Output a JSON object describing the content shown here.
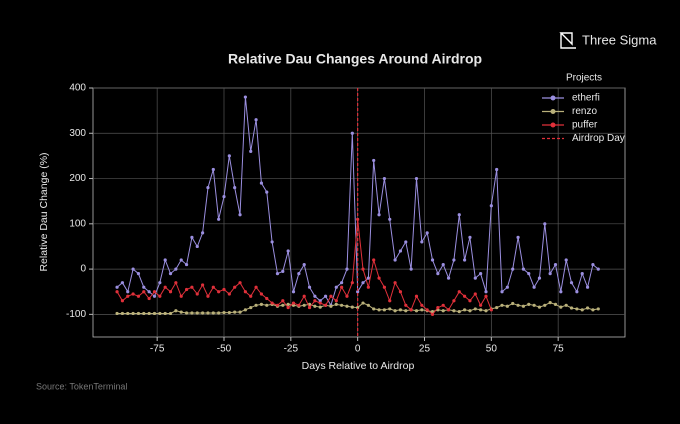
{
  "brand": "Three Sigma",
  "source": "Source: TokenTerminal",
  "chart_data": {
    "type": "line",
    "title": "Relative Dau Changes Around Airdrop",
    "x_label": "Days Relative to Airdrop",
    "y_label": "Relative Dau Change (%)",
    "legend_title": "Projects",
    "legend_position": "upper right",
    "grid": true,
    "xlim": [
      -99,
      100
    ],
    "ylim": [
      -150,
      400
    ],
    "xticks": [
      -75,
      -50,
      -25,
      0,
      25,
      50,
      75
    ],
    "yticks": [
      -100,
      0,
      100,
      200,
      300,
      400
    ],
    "airdrop_day": {
      "name": "Airdrop Day",
      "x": 0,
      "color": "#e0303a"
    },
    "x": [
      -90,
      -88,
      -86,
      -84,
      -82,
      -80,
      -78,
      -76,
      -74,
      -72,
      -70,
      -68,
      -66,
      -64,
      -62,
      -60,
      -58,
      -56,
      -54,
      -52,
      -50,
      -48,
      -46,
      -44,
      -42,
      -40,
      -38,
      -36,
      -34,
      -32,
      -30,
      -28,
      -26,
      -24,
      -22,
      -20,
      -18,
      -16,
      -14,
      -12,
      -10,
      -8,
      -6,
      -4,
      -2,
      0,
      2,
      4,
      6,
      8,
      10,
      12,
      14,
      16,
      18,
      20,
      22,
      24,
      26,
      28,
      30,
      32,
      34,
      36,
      38,
      40,
      42,
      44,
      46,
      48,
      50,
      52,
      54,
      56,
      58,
      60,
      62,
      64,
      66,
      68,
      70,
      72,
      74,
      76,
      78,
      80,
      82,
      84,
      86,
      88,
      90
    ],
    "series": [
      {
        "name": "etherfi",
        "color": "#9b8fe0",
        "values": [
          -40,
          -30,
          -50,
          0,
          -10,
          -40,
          -50,
          -60,
          -30,
          20,
          -10,
          0,
          20,
          10,
          70,
          50,
          80,
          180,
          220,
          110,
          160,
          250,
          180,
          120,
          380,
          260,
          330,
          190,
          170,
          60,
          -10,
          -5,
          40,
          -50,
          -10,
          10,
          -40,
          -60,
          -70,
          -60,
          -80,
          -40,
          -30,
          0,
          300,
          -50,
          -30,
          -20,
          240,
          120,
          200,
          110,
          20,
          40,
          60,
          0,
          200,
          60,
          80,
          20,
          -10,
          10,
          -20,
          20,
          120,
          20,
          70,
          -20,
          -10,
          -50,
          140,
          220,
          -50,
          -40,
          0,
          70,
          0,
          -10,
          -40,
          -20,
          100,
          -10,
          10,
          -50,
          20,
          -30,
          -50,
          -10,
          -40,
          10,
          0
        ]
      },
      {
        "name": "renzo",
        "color": "#b9b07a",
        "values": [
          -98,
          -98,
          -98,
          -98,
          -98,
          -98,
          -98,
          -98,
          -98,
          -98,
          -98,
          -92,
          -95,
          -97,
          -97,
          -97,
          -97,
          -97,
          -97,
          -97,
          -96,
          -96,
          -95,
          -95,
          -90,
          -85,
          -80,
          -78,
          -80,
          -78,
          -82,
          -80,
          -78,
          -80,
          -82,
          -80,
          -78,
          -82,
          -84,
          -80,
          -82,
          -78,
          -80,
          -82,
          -84,
          -85,
          -75,
          -80,
          -88,
          -90,
          -90,
          -88,
          -92,
          -90,
          -92,
          -90,
          -92,
          -90,
          -92,
          -94,
          -90,
          -92,
          -90,
          -92,
          -94,
          -90,
          -92,
          -88,
          -90,
          -92,
          -88,
          -85,
          -80,
          -82,
          -76,
          -80,
          -82,
          -78,
          -80,
          -84,
          -80,
          -74,
          -78,
          -84,
          -80,
          -86,
          -88,
          -90,
          -86,
          -90,
          -88
        ]
      },
      {
        "name": "puffer",
        "color": "#e0303a",
        "values": [
          -50,
          -70,
          -60,
          -55,
          -60,
          -50,
          -65,
          -50,
          -60,
          -40,
          -50,
          -30,
          -60,
          -45,
          -40,
          -55,
          -35,
          -60,
          -40,
          -50,
          -45,
          -55,
          -40,
          -30,
          -50,
          -60,
          -40,
          -55,
          -65,
          -75,
          -80,
          -70,
          -85,
          -75,
          -80,
          -60,
          -85,
          -70,
          -75,
          -80,
          -60,
          -70,
          -40,
          -60,
          -30,
          110,
          0,
          -40,
          20,
          -20,
          -40,
          -70,
          -30,
          -50,
          -80,
          -90,
          -60,
          -80,
          -90,
          -100,
          -85,
          -80,
          -90,
          -70,
          -50,
          -60,
          -70,
          -55,
          -80,
          -60,
          -90,
          null,
          null,
          null,
          null,
          null,
          null,
          null,
          null,
          null,
          null,
          null,
          null,
          null,
          null,
          null,
          null,
          null,
          null,
          null,
          null
        ]
      }
    ]
  }
}
